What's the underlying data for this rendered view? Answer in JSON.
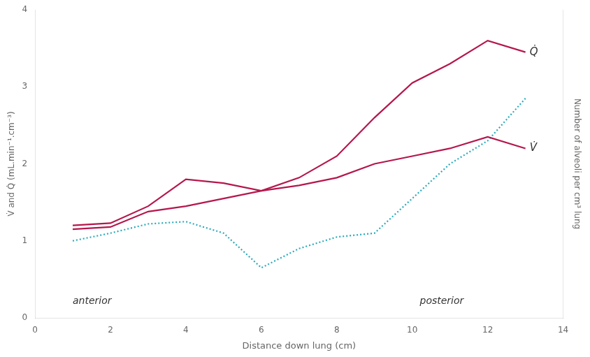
{
  "chart_data": {
    "type": "line",
    "xlabel": "Distance down lung (cm)",
    "ylabel": "V̇ and Q̇ (mL.min⁻¹.cm⁻³)",
    "y2label": "Number of alveoli per cm³ lung",
    "series": [
      {
        "name": "Q̇",
        "color": "#b5174d",
        "line_style": "solid",
        "x": [
          1,
          2,
          3,
          4,
          5,
          6,
          7,
          8,
          9,
          10,
          11,
          12,
          13
        ],
        "values": [
          1.2,
          1.23,
          1.45,
          1.8,
          1.75,
          1.65,
          1.82,
          2.1,
          2.6,
          3.05,
          3.3,
          3.6,
          3.45
        ]
      },
      {
        "name": "V̇",
        "color": "#b5174d",
        "line_style": "solid",
        "x": [
          1,
          2,
          3,
          4,
          5,
          6,
          7,
          8,
          9,
          10,
          11,
          12,
          13
        ],
        "values": [
          1.15,
          1.18,
          1.38,
          1.45,
          1.55,
          1.65,
          1.72,
          1.82,
          2.0,
          2.1,
          2.2,
          2.35,
          2.2
        ]
      },
      {
        "color": "#2aaabb",
        "line_style": "dotted",
        "axis": "y2",
        "x": [
          1,
          2,
          3,
          4,
          5,
          6,
          7,
          8,
          9,
          10,
          11,
          12,
          13
        ],
        "values": [
          1.0,
          1.1,
          1.22,
          1.25,
          1.1,
          0.65,
          0.9,
          1.05,
          1.1,
          1.55,
          2.0,
          2.3,
          2.85
        ]
      }
    ],
    "annotations": [
      {
        "text": "anterior",
        "x": 1.0,
        "y": 0.15
      },
      {
        "text": "posterior",
        "x": 10.2,
        "y": 0.15
      }
    ],
    "xlim": [
      0,
      14
    ],
    "xticks": [
      0,
      2,
      4,
      6,
      8,
      10,
      12,
      14
    ],
    "ylim": [
      0,
      4
    ],
    "yticks": [
      0,
      1,
      2,
      3,
      4
    ],
    "y2lim": [
      0,
      4
    ],
    "y2ticks": [],
    "grid": false
  }
}
